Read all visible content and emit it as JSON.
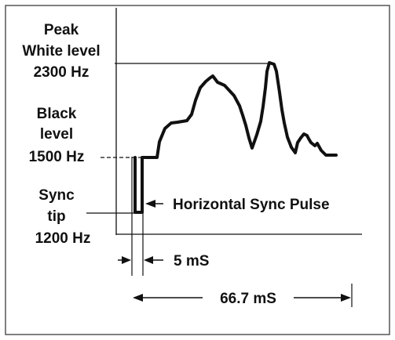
{
  "labels": {
    "peak_line1": "Peak",
    "peak_line2": "White level",
    "peak_line3": "2300 Hz",
    "black_line1": "Black",
    "black_line2": "level",
    "black_line3": "1500 Hz",
    "sync_line1": "Sync",
    "sync_line2": "tip",
    "sync_line3": "1200 Hz",
    "pulse_label": "Horizontal Sync Pulse",
    "pulse_width": "5 mS",
    "line_period": "66.7 mS"
  },
  "colors": {
    "ink": "#111111",
    "frame": "#555555",
    "background": "#ffffff"
  }
}
